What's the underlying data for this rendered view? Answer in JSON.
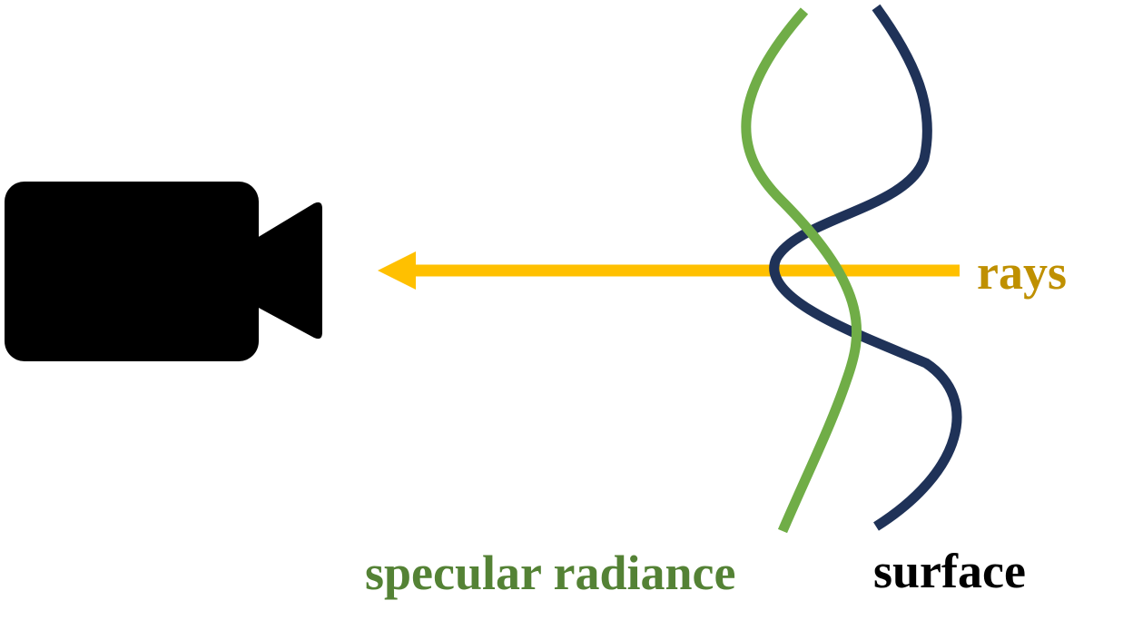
{
  "labels": {
    "rays": "rays",
    "specular_radiance": "specular radiance",
    "surface": "surface"
  },
  "icons": {
    "camera": "video-camera-icon"
  },
  "colors": {
    "rays_line": "#FFC000",
    "rays_label": "#BF9000",
    "specular_line": "#70AD47",
    "specular_label": "#548235",
    "surface_line": "#1F3258",
    "surface_label": "#000000",
    "camera": "#000000"
  }
}
